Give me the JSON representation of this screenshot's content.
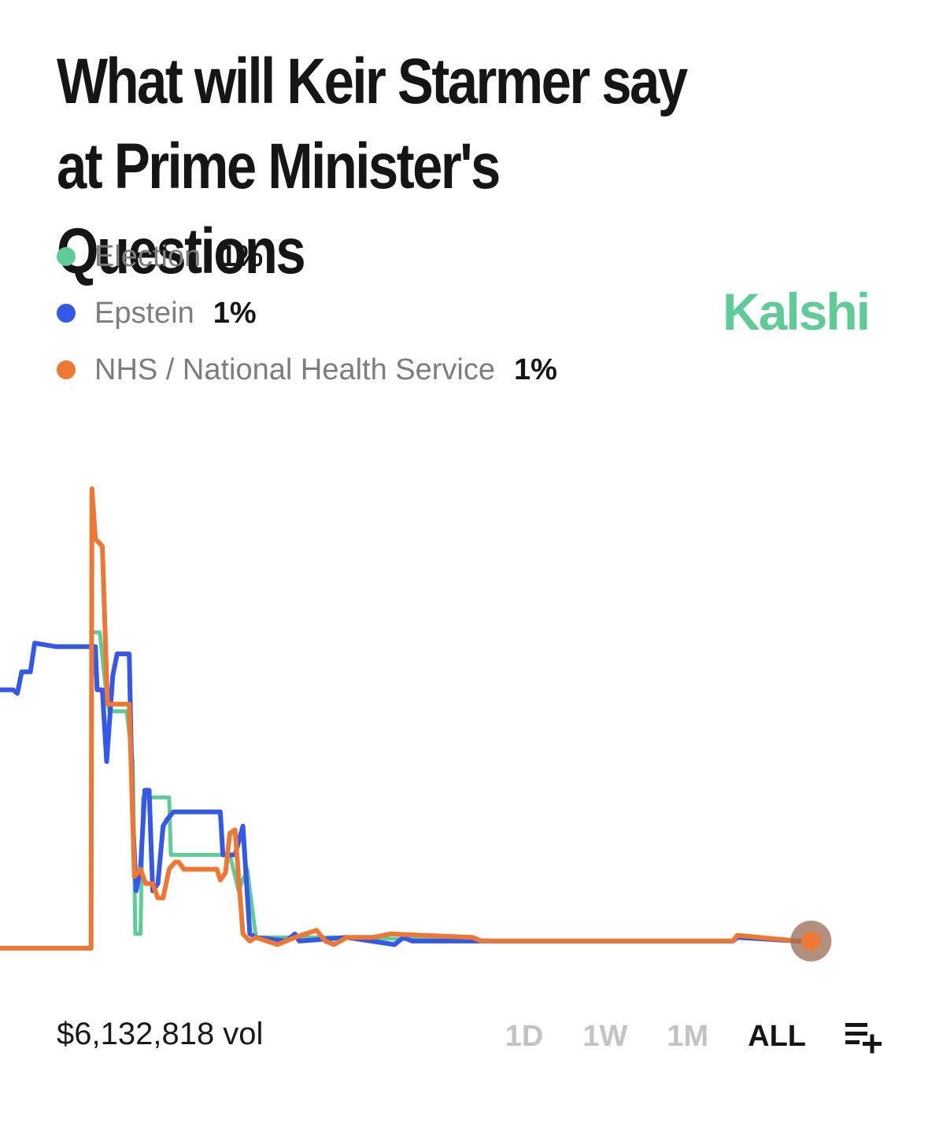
{
  "title": "What will Keir Starmer say at Prime Minister's Questions",
  "brand": "Kalshi",
  "legend": [
    {
      "name": "Election",
      "value": "1%",
      "color": "#5fcb97"
    },
    {
      "name": "Epstein",
      "value": "1%",
      "color": "#3458e8"
    },
    {
      "name": "NHS / National Health Service",
      "value": "1%",
      "color": "#ee7733"
    }
  ],
  "footer": {
    "volume": "$6,132,818 vol",
    "ranges": [
      "1D",
      "1W",
      "1M",
      "ALL"
    ],
    "active_range": "ALL",
    "add_icon": "playlist-add-icon"
  },
  "chart_data": {
    "type": "line",
    "title": "",
    "xlabel": "",
    "ylabel": "",
    "x_range": [
      0,
      100
    ],
    "ylim": [
      0,
      65
    ],
    "grid": false,
    "series": [
      {
        "name": "Election",
        "color": "#5fcb97",
        "x": [
          0,
          10.5,
          10.6,
          11.5,
          12.3,
          12.6,
          14.6,
          15.3,
          15.6,
          16.2,
          16.5,
          19.5,
          19.7,
          26.5,
          27.5,
          28.5,
          29.5,
          40,
          55,
          84.5,
          85,
          92,
          93.5
        ],
        "y": [
          0,
          0,
          44,
          44,
          35,
          33,
          33,
          26,
          2,
          2,
          21,
          21,
          13,
          13,
          8,
          11,
          1.5,
          1.5,
          1,
          1,
          1.5,
          1,
          1
        ]
      },
      {
        "name": "Epstein",
        "color": "#3458e8",
        "x": [
          0,
          1.5,
          2,
          2.5,
          3.5,
          4,
          6.5,
          11,
          11.2,
          11.8,
          12.3,
          13,
          13.5,
          14.9,
          15.3,
          15.7,
          16.2,
          16.7,
          17.2,
          17.6,
          18.2,
          18.8,
          19.3,
          20,
          25.4,
          25.7,
          27.1,
          28,
          28.8,
          29.5,
          33,
          34,
          34.5,
          40,
          45.5,
          46.5,
          47.5,
          55,
          84.5,
          85,
          92,
          93.5
        ],
        "y": [
          36,
          36,
          35.5,
          38.5,
          38.5,
          42.5,
          42,
          42,
          36,
          36,
          26,
          38,
          41,
          41,
          18,
          8,
          11,
          22,
          22,
          8,
          9,
          17,
          18,
          19,
          19,
          13,
          13,
          17,
          2,
          1.5,
          1,
          2,
          1,
          1.5,
          0.5,
          1.5,
          1,
          1,
          1,
          1.5,
          1,
          1
        ]
      },
      {
        "name": "NHS / National Health Service",
        "color": "#ee7733",
        "x": [
          0,
          10.5,
          10.6,
          11,
          11.8,
          12.4,
          14.9,
          15.5,
          16.2,
          16.8,
          17.6,
          18.2,
          18.8,
          19.5,
          20.2,
          20.6,
          21.2,
          25,
          25.4,
          26,
          26.5,
          27.1,
          28,
          28.8,
          29.5,
          32,
          34,
          36.5,
          37.5,
          38.5,
          40,
          43,
          45,
          54.5,
          55.5,
          84.5,
          85,
          92,
          93.5
        ],
        "y": [
          0,
          0,
          64,
          57,
          56,
          34,
          34,
          10,
          11,
          9,
          9,
          7,
          7,
          11,
          12,
          12,
          11,
          11,
          9.5,
          10.5,
          16,
          16.5,
          2,
          1,
          1.5,
          0.5,
          1.5,
          2.5,
          1,
          0.5,
          1.5,
          1.5,
          2,
          1.5,
          1,
          1,
          1.8,
          1,
          1
        ]
      }
    ]
  }
}
